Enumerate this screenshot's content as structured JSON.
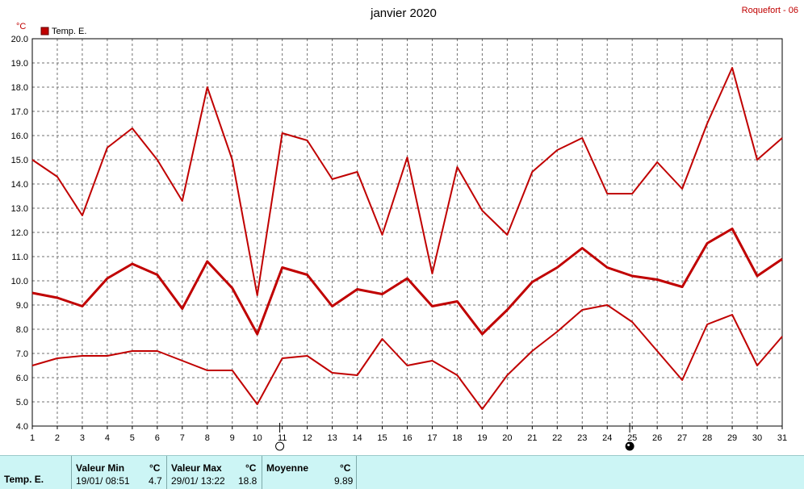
{
  "header": {
    "title": "janvier 2020",
    "station": "Roquefort - 06",
    "unit": "°C"
  },
  "colors": {
    "series": "#c00000",
    "grid": "#707070",
    "panel": "#ccf5f5"
  },
  "chart_data": {
    "type": "line",
    "title": "janvier 2020",
    "ylabel": "°C",
    "ylim": [
      4.0,
      20.0
    ],
    "yticks": [
      "4.0",
      "5.0",
      "6.0",
      "7.0",
      "8.0",
      "9.0",
      "10.0",
      "11.0",
      "12.0",
      "13.0",
      "14.0",
      "15.0",
      "16.0",
      "17.0",
      "18.0",
      "19.0",
      "20.0"
    ],
    "x": [
      1,
      2,
      3,
      4,
      5,
      6,
      7,
      8,
      9,
      10,
      11,
      12,
      13,
      14,
      15,
      16,
      17,
      18,
      19,
      20,
      21,
      22,
      23,
      24,
      25,
      26,
      27,
      28,
      29,
      30,
      31
    ],
    "xlim": [
      1,
      31
    ],
    "grid": true,
    "legend": "top-left",
    "legend_label": "Temp. E.",
    "series": [
      {
        "name": "",
        "width": 2,
        "values": [
          15.0,
          14.3,
          12.7,
          15.5,
          16.3,
          15.0,
          13.3,
          18.0,
          15.0,
          9.4,
          16.1,
          15.8,
          14.2,
          14.5,
          11.9,
          15.1,
          10.3,
          14.7,
          12.9,
          11.9,
          14.5,
          15.4,
          15.9,
          13.6,
          13.6,
          14.9,
          13.8,
          16.5,
          18.8,
          15.0,
          15.9
        ]
      },
      {
        "name": "",
        "width": 3,
        "values": [
          9.5,
          9.3,
          8.95,
          10.1,
          10.7,
          10.25,
          8.85,
          10.8,
          9.7,
          7.8,
          10.55,
          10.25,
          8.95,
          9.65,
          9.45,
          10.1,
          8.95,
          9.15,
          7.8,
          8.8,
          9.95,
          10.55,
          11.35,
          10.55,
          10.2,
          10.05,
          9.75,
          11.55,
          12.15,
          10.2,
          10.9
        ]
      },
      {
        "name": "",
        "width": 2,
        "values": [
          6.5,
          6.8,
          6.9,
          6.9,
          7.1,
          7.1,
          6.7,
          6.3,
          6.3,
          4.9,
          6.8,
          6.9,
          6.2,
          6.1,
          7.6,
          6.5,
          6.7,
          6.1,
          4.7,
          6.1,
          7.1,
          7.9,
          8.8,
          9.0,
          8.3,
          7.1,
          5.9,
          8.2,
          8.6,
          6.5,
          7.7
        ]
      }
    ],
    "moon_markers": [
      {
        "day": 10.9,
        "phase": "full"
      },
      {
        "day": 24.9,
        "phase": "new"
      }
    ]
  },
  "stats": {
    "row_label": "Temp. E.",
    "min": {
      "label": "Valeur Min",
      "unit": "°C",
      "date": "19/01/  08:51",
      "value": "4.7"
    },
    "max": {
      "label": "Valeur Max",
      "unit": "°C",
      "date": "29/01/  13:22",
      "value": "18.8"
    },
    "avg": {
      "label": "Moyenne",
      "unit": "°C",
      "value": "9.89"
    }
  }
}
